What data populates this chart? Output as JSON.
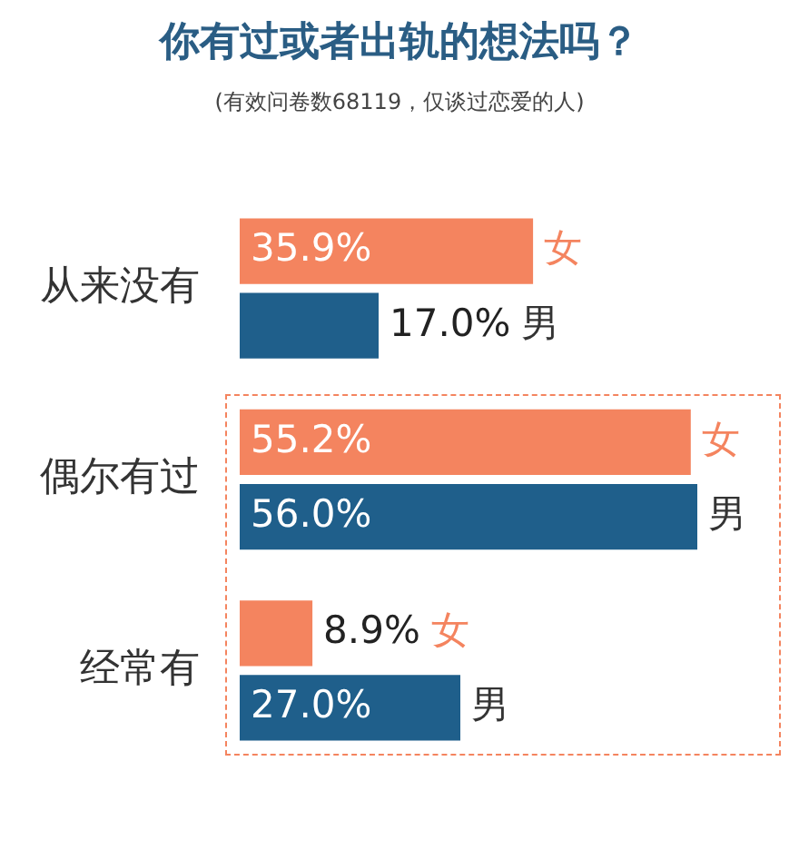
{
  "chart_data": {
    "type": "bar",
    "orientation": "horizontal",
    "title": "你有过或者出轨的想法吗？",
    "subtitle": "(有效问卷数68119，仅谈过恋爱的人)",
    "categories": [
      "从来没有",
      "偶尔有过",
      "经常有"
    ],
    "series": [
      {
        "name": "女",
        "color": "#f4845f",
        "values": [
          35.9,
          55.2,
          8.9
        ],
        "value_labels": [
          "35.9%",
          "55.2%",
          "8.9%"
        ]
      },
      {
        "name": "男",
        "color": "#1f5f8b",
        "values": [
          17.0,
          56.0,
          27.0
        ],
        "value_labels": [
          "17.0%",
          "56.0%",
          "27.0%"
        ]
      }
    ],
    "tick_labels": "y",
    "legend": false
  }
}
